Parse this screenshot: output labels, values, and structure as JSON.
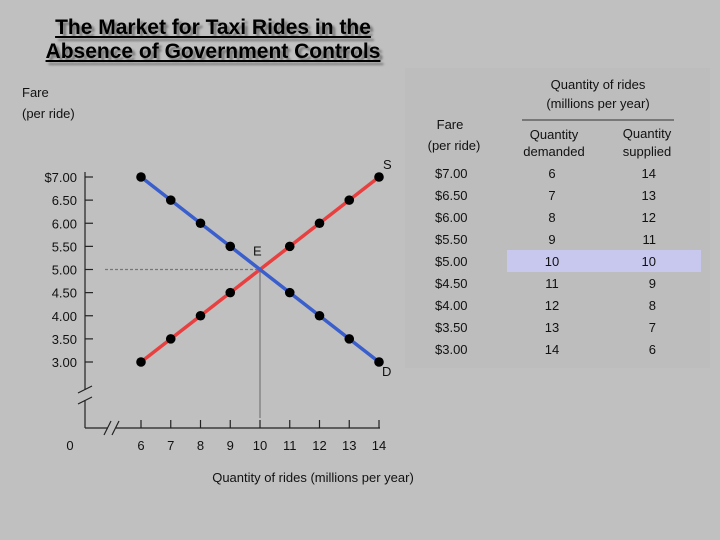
{
  "slide": {
    "title_line1": "The Market for Taxi Rides in the",
    "title_line2": "Absence of Government Controls"
  },
  "chart_data": {
    "type": "line",
    "ylabel_line1": "Fare",
    "ylabel_line2": "(per ride)",
    "xlabel": "Quantity of rides (millions per year)",
    "y_ticks": [
      "$7.00",
      "6.50",
      "6.00",
      "5.50",
      "5.00",
      "4.50",
      "4.00",
      "3.50",
      "3.00"
    ],
    "x_ticks": [
      "6",
      "7",
      "8",
      "9",
      "10",
      "11",
      "12",
      "13",
      "14"
    ],
    "origin_label": "0",
    "xlim": [
      6,
      14
    ],
    "ylim": [
      3.0,
      7.0
    ],
    "series": [
      {
        "name": "S",
        "color": "#e84040",
        "x": [
          6,
          7,
          8,
          9,
          10,
          11,
          12,
          13,
          14
        ],
        "y": [
          3.0,
          3.5,
          4.0,
          4.5,
          5.0,
          5.5,
          6.0,
          6.5,
          7.0
        ]
      },
      {
        "name": "D",
        "color": "#3a5fcd",
        "x": [
          6,
          7,
          8,
          9,
          10,
          11,
          12,
          13,
          14
        ],
        "y": [
          7.0,
          6.5,
          6.0,
          5.5,
          5.0,
          4.5,
          4.0,
          3.5,
          3.0
        ]
      }
    ],
    "equilibrium": {
      "label": "E",
      "x": 10,
      "y": 5.0
    }
  },
  "table": {
    "header_top_line1": "Quantity of rides",
    "header_top_line2": "(millions per year)",
    "col_fare_line1": "Fare",
    "col_fare_line2": "(per ride)",
    "col_qd_line1": "Quantity",
    "col_qd_line2": "demanded",
    "col_qs_line1": "Quantity",
    "col_qs_line2": "supplied",
    "rows": [
      {
        "fare": "$7.00",
        "qd": "6",
        "qs": "14"
      },
      {
        "fare": "$6.50",
        "qd": "7",
        "qs": "13"
      },
      {
        "fare": "$6.00",
        "qd": "8",
        "qs": "12"
      },
      {
        "fare": "$5.50",
        "qd": "9",
        "qs": "11"
      },
      {
        "fare": "$5.00",
        "qd": "10",
        "qs": "10"
      },
      {
        "fare": "$4.50",
        "qd": "11",
        "qs": "9"
      },
      {
        "fare": "$4.00",
        "qd": "12",
        "qs": "8"
      },
      {
        "fare": "$3.50",
        "qd": "13",
        "qs": "7"
      },
      {
        "fare": "$3.00",
        "qd": "14",
        "qs": "6"
      }
    ],
    "highlight_row": 4,
    "highlight_color": "#c8c8ee"
  }
}
